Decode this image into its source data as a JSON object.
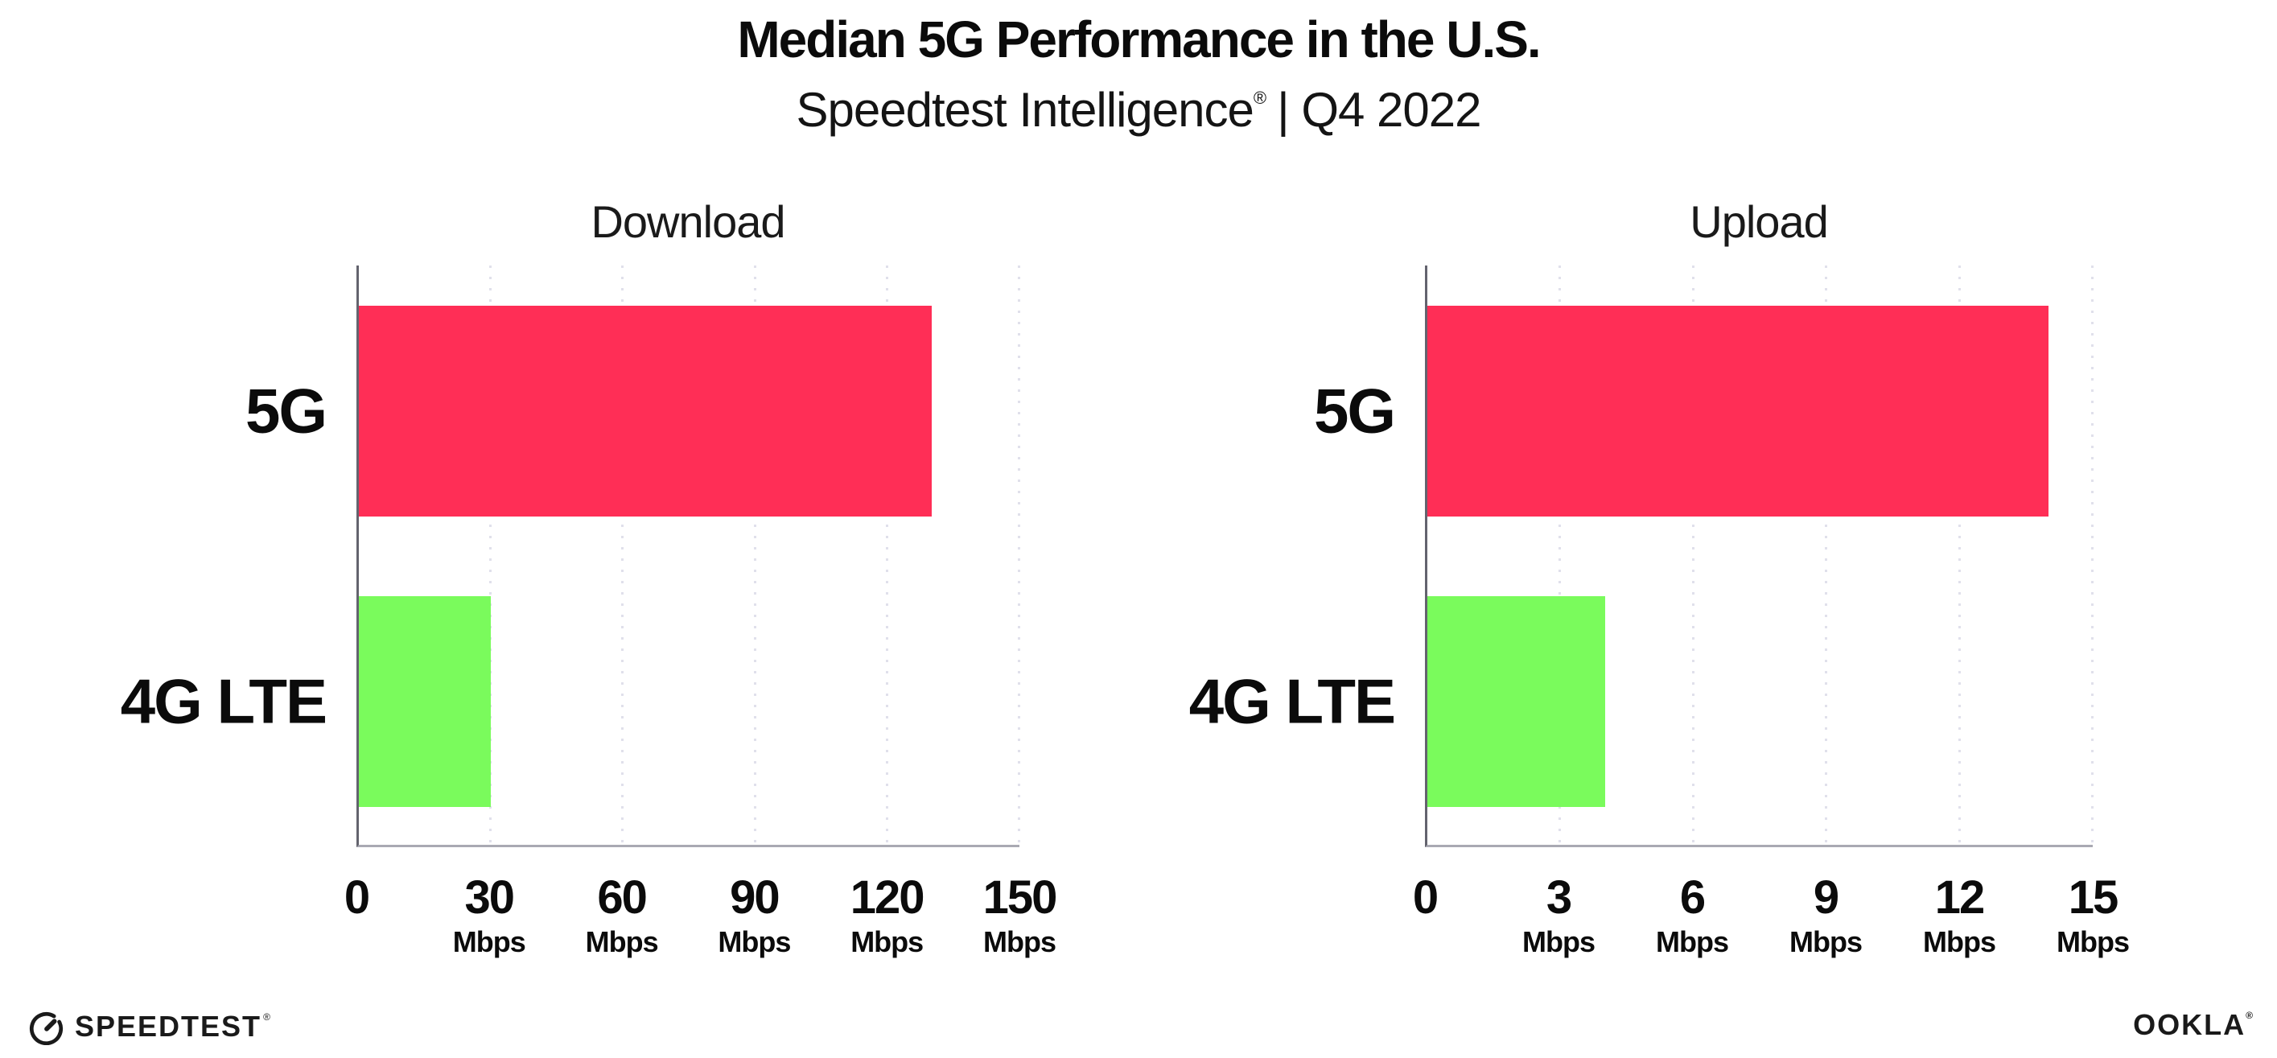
{
  "header": {
    "title": "Median 5G Performance in the U.S.",
    "subtitle_brand": "Speedtest Intelligence",
    "subtitle_reg": "®",
    "subtitle_rest": "| Q4 2022"
  },
  "colors": {
    "bar_5g": "#FF2E56",
    "bar_4g_lte": "#7AFB5C",
    "gridline": "#E0E0EB",
    "x_axis_line": "#A9A9B3",
    "y_axis_line": "#63636E",
    "text": "#111111"
  },
  "chart_data": [
    {
      "type": "bar",
      "orientation": "horizontal",
      "title": "Download",
      "categories": [
        "5G",
        "4G LTE"
      ],
      "values": [
        130,
        30
      ],
      "unit": "Mbps",
      "xlim": [
        0,
        150
      ],
      "xticks": [
        0,
        30,
        60,
        90,
        120,
        150
      ],
      "grid": "vertical-dotted",
      "legend": "none",
      "bar_colors": [
        "#FF2E56",
        "#7AFB5C"
      ]
    },
    {
      "type": "bar",
      "orientation": "horizontal",
      "title": "Upload",
      "categories": [
        "5G",
        "4G LTE"
      ],
      "values": [
        14,
        4
      ],
      "unit": "Mbps",
      "xlim": [
        0,
        15
      ],
      "xticks": [
        0,
        3,
        6,
        9,
        12,
        15
      ],
      "grid": "vertical-dotted",
      "legend": "none",
      "bar_colors": [
        "#FF2E56",
        "#7AFB5C"
      ]
    }
  ],
  "footer": {
    "speedtest_label": "SPEEDTEST",
    "speedtest_mark": "®",
    "ookla_label": "OOKLA",
    "ookla_mark": "®"
  }
}
